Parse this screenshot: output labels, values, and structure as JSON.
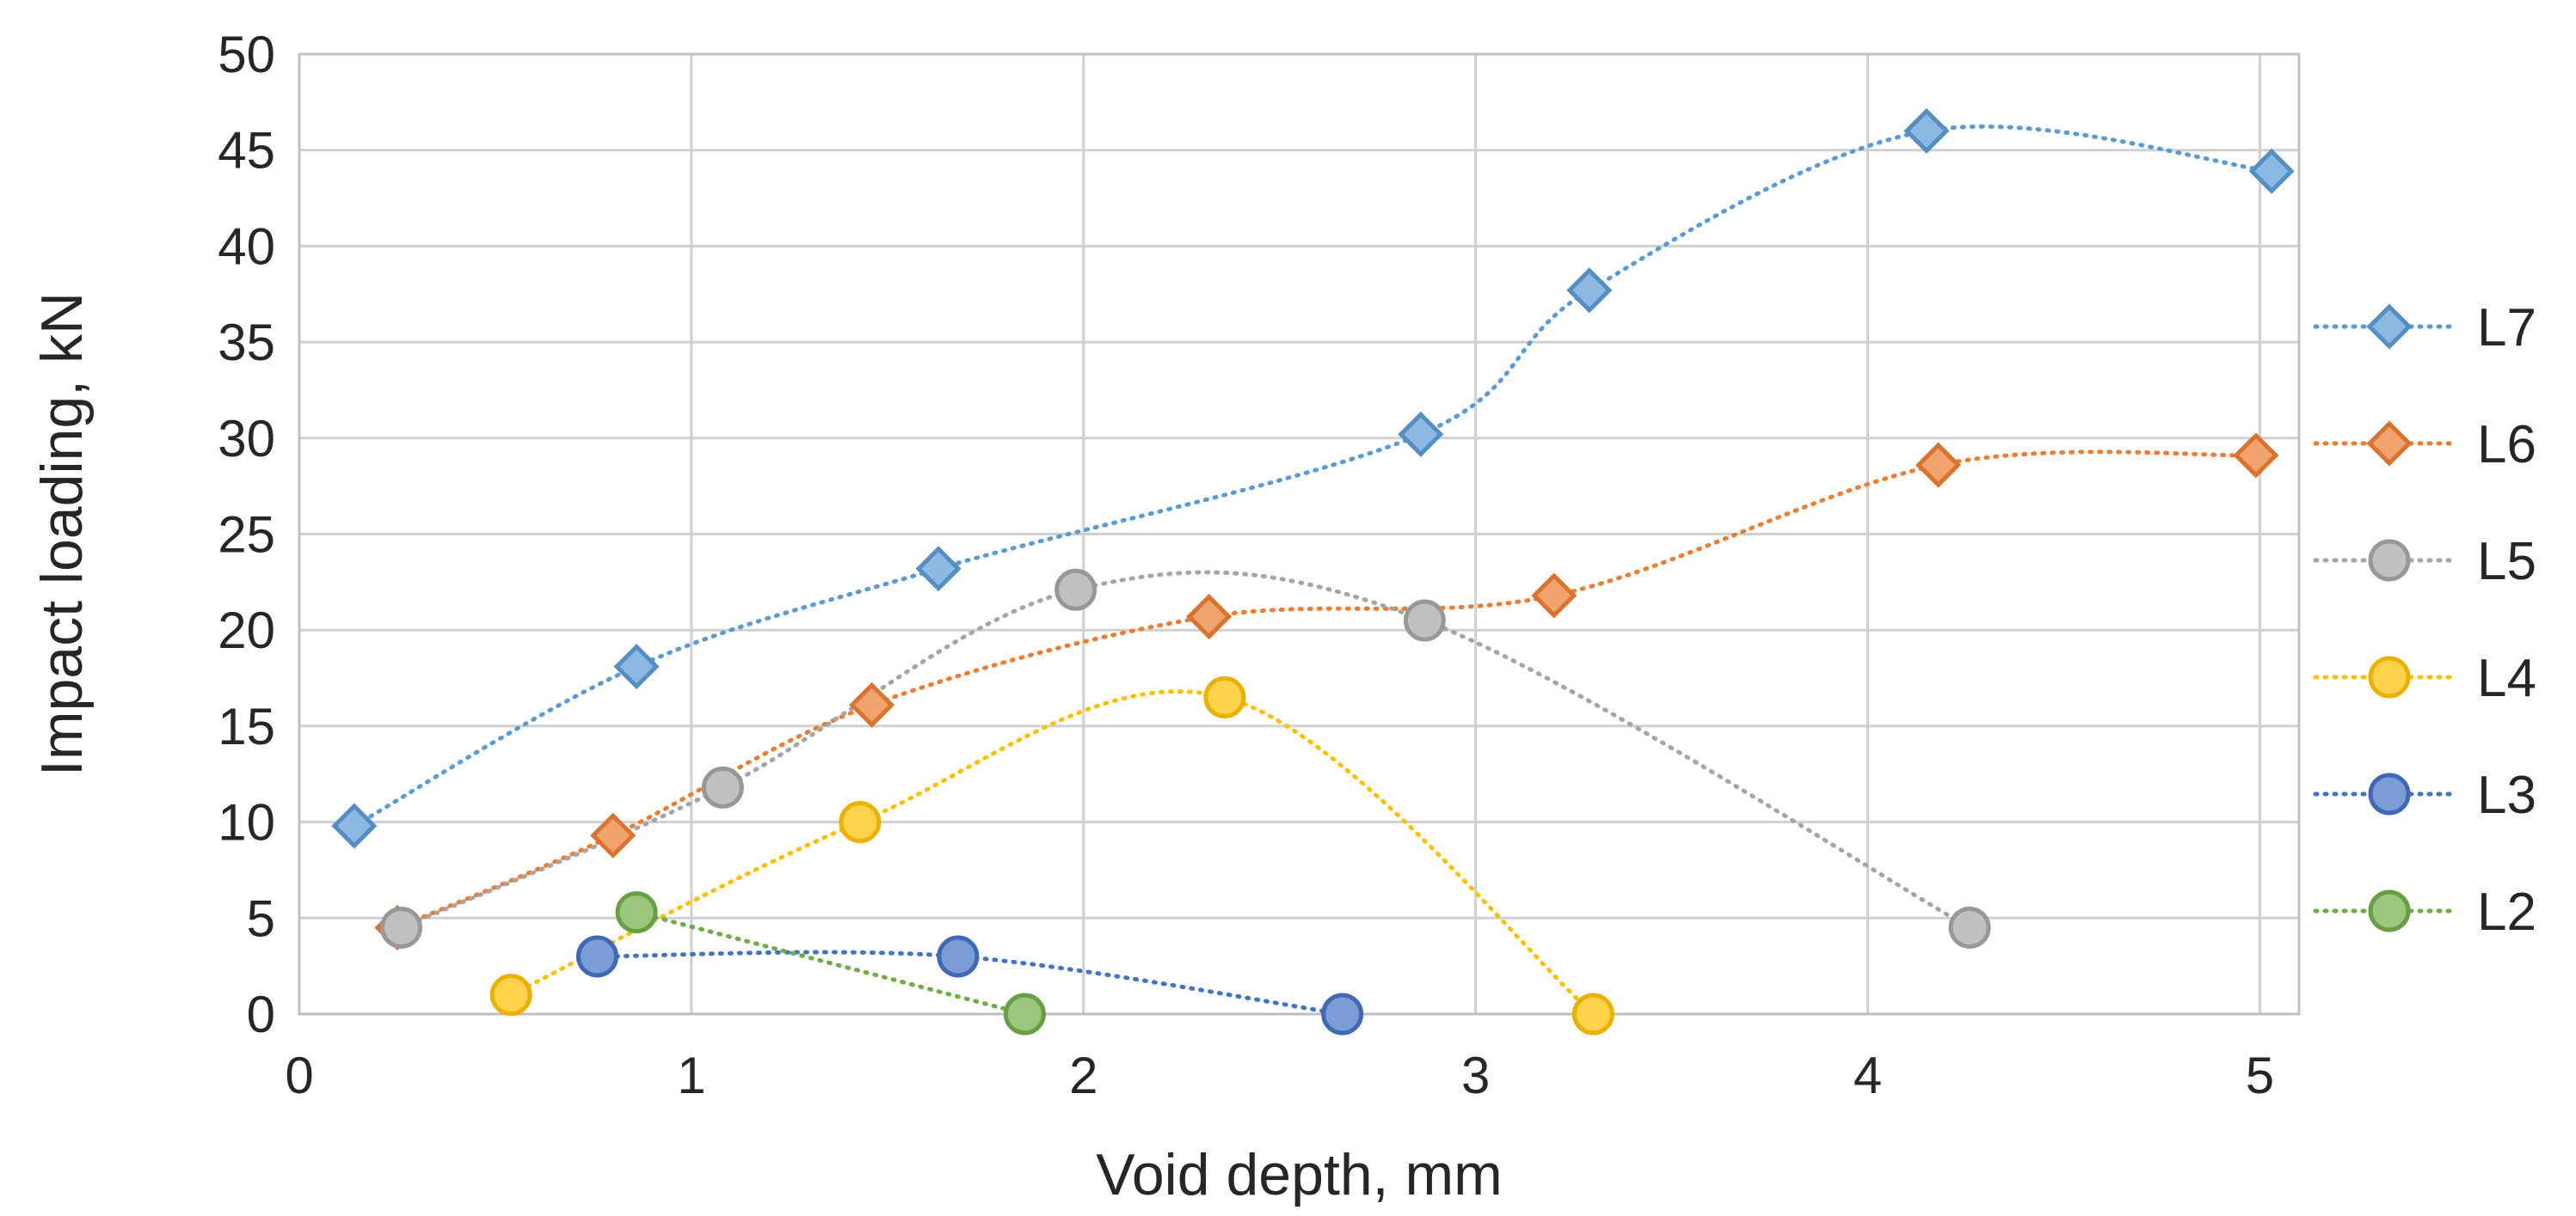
{
  "chart_data": {
    "type": "scatter",
    "title": "",
    "xlabel": "Void depth, mm",
    "ylabel": "Impact loading, kN",
    "xlim": [
      0,
      5.1
    ],
    "ylim": [
      0,
      50
    ],
    "xticks": [
      0,
      1,
      2,
      3,
      4,
      5
    ],
    "yticks": [
      0,
      5,
      10,
      15,
      20,
      25,
      30,
      35,
      40,
      45,
      50
    ],
    "grid": true,
    "legend_position": "right",
    "line_style": "dotted smoothed",
    "series": [
      {
        "name": "L7",
        "marker": "diamond",
        "color": "#5B9BD5",
        "points": [
          [
            0.14,
            9.8
          ],
          [
            0.86,
            18.1
          ],
          [
            1.63,
            23.2
          ],
          [
            2.86,
            30.2
          ],
          [
            3.29,
            37.7
          ],
          [
            4.15,
            46.0
          ],
          [
            5.03,
            43.9
          ]
        ]
      },
      {
        "name": "L6",
        "marker": "diamond",
        "color": "#ED7D31",
        "points": [
          [
            0.25,
            4.5
          ],
          [
            0.8,
            9.3
          ],
          [
            1.46,
            16.1
          ],
          [
            2.32,
            20.7
          ],
          [
            3.2,
            21.8
          ],
          [
            4.18,
            28.6
          ],
          [
            4.99,
            29.1
          ]
        ]
      },
      {
        "name": "L5",
        "marker": "circle",
        "color": "#A5A5A5",
        "points": [
          [
            0.26,
            4.5
          ],
          [
            1.08,
            11.8
          ],
          [
            1.98,
            22.1
          ],
          [
            2.87,
            20.5
          ],
          [
            4.26,
            4.5
          ]
        ]
      },
      {
        "name": "L4",
        "marker": "circle",
        "color": "#FFC000",
        "points": [
          [
            0.54,
            1.0
          ],
          [
            1.43,
            10.0
          ],
          [
            2.36,
            16.5
          ],
          [
            3.3,
            0.0
          ]
        ]
      },
      {
        "name": "L3",
        "marker": "circle",
        "color": "#4472C4",
        "points": [
          [
            0.76,
            3.0
          ],
          [
            1.68,
            3.0
          ],
          [
            2.66,
            0.0
          ]
        ]
      },
      {
        "name": "L2",
        "marker": "circle",
        "color": "#70AD47",
        "points": [
          [
            0.86,
            5.3
          ],
          [
            1.85,
            0.0
          ]
        ]
      }
    ]
  }
}
